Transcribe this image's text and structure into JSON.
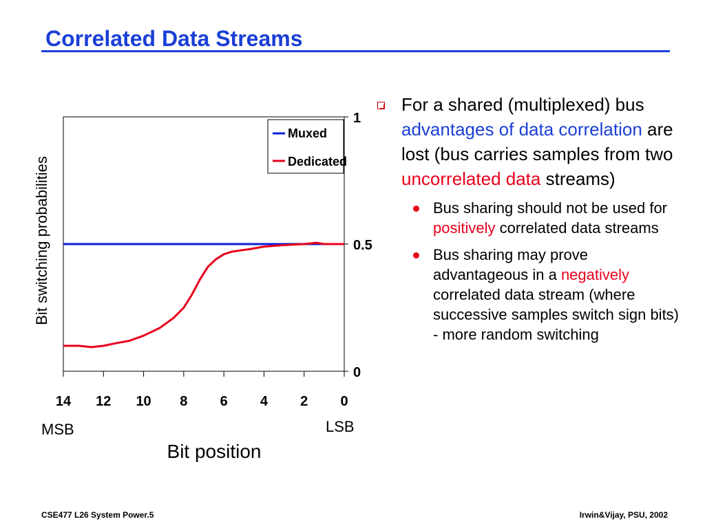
{
  "slide": {
    "title": "Correlated Data Streams",
    "footer_left": "CSE477  L26 System Power.5",
    "footer_right": "Irwin&Vijay, PSU, 2002"
  },
  "bullets": {
    "main": {
      "p1": "For a shared (multiplexed) bus ",
      "h1": "advantages of data correlation",
      "p2": " are lost (bus carries samples from two ",
      "h2": "uncorrelated data",
      "p3": " streams)"
    },
    "sub1": {
      "p1": "Bus sharing should not be used for ",
      "h1": "positively",
      "p2": " correlated data streams"
    },
    "sub2": {
      "p1": "Bus sharing may prove advantageous in a ",
      "h1": "negatively",
      "p2": " correlated data stream (where successive samples switch sign bits) - more random switching"
    }
  },
  "colors": {
    "title": "#1a3fd6",
    "muxed": "#0a1fd8",
    "dedicated": "#e8001c",
    "highlight_blue": "#1a3fd6",
    "highlight_red": "#e8001c"
  },
  "chart_data": {
    "type": "line",
    "xlabel": "Bit position",
    "ylabel": "Bit switching probabilities",
    "x_left_label": "MSB",
    "x_right_label": "LSB",
    "xlim": [
      14,
      0
    ],
    "ylim": [
      0,
      1
    ],
    "x_ticks": [
      "14",
      "12",
      "10",
      "8",
      "6",
      "4",
      "2",
      "0"
    ],
    "y_ticks": [
      "0",
      "0.5",
      "1"
    ],
    "y_axis_side": "right",
    "legend_position": "top-right",
    "series": [
      {
        "name": "Muxed",
        "color": "#0a1fd8",
        "x": [
          14,
          0
        ],
        "y": [
          0.5,
          0.5
        ]
      },
      {
        "name": "Dedicated",
        "color": "#e8001c",
        "x": [
          14,
          13.2,
          12.6,
          12,
          11.4,
          10.7,
          10,
          9.2,
          8.5,
          8,
          7.6,
          7.2,
          6.8,
          6.4,
          6.0,
          5.6,
          5.2,
          4.7,
          4.0,
          3.2,
          2.5,
          2.0,
          1.4,
          1.0,
          0.5,
          0
        ],
        "y": [
          0.1,
          0.1,
          0.095,
          0.1,
          0.11,
          0.12,
          0.14,
          0.17,
          0.21,
          0.25,
          0.3,
          0.36,
          0.41,
          0.44,
          0.46,
          0.47,
          0.475,
          0.48,
          0.49,
          0.495,
          0.498,
          0.5,
          0.505,
          0.5,
          0.5,
          0.5
        ]
      }
    ]
  }
}
